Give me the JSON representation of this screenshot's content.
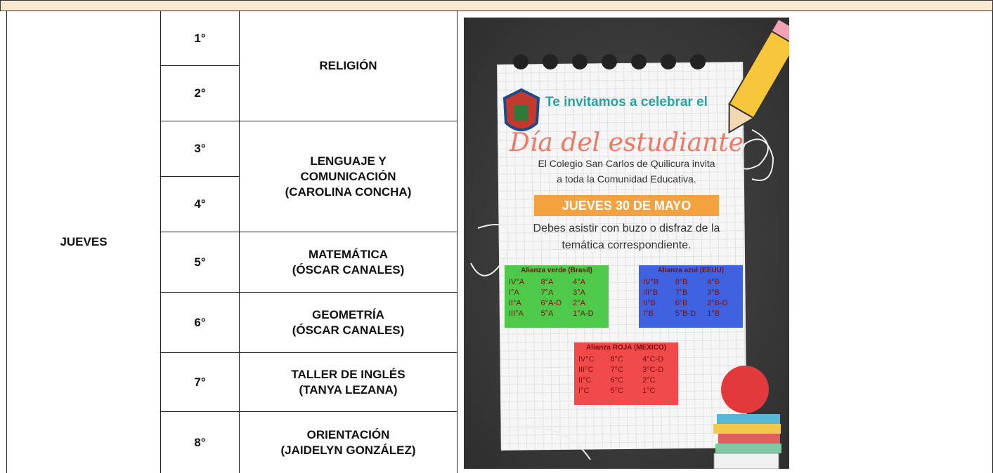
{
  "table": {
    "day": "JUEVES",
    "periods": [
      "1°",
      "2°",
      "3°",
      "4°",
      "5°",
      "6°",
      "7°",
      "8°"
    ],
    "subjects": [
      [
        "RELIGIÓN"
      ],
      null,
      [
        "LENGUAJE Y",
        "COMUNICACIÓN",
        "(CAROLINA CONCHA)"
      ],
      null,
      [
        "MATEMÁTICA",
        "(ÓSCAR CANALES)"
      ],
      [
        "GEOMETRÍA",
        "(ÓSCAR CANALES)"
      ],
      [
        "TALLER DE INGLÉS",
        "(TANYA LEZANA)"
      ],
      [
        "ORIENTACIÓN",
        "(JAIDELYN GONZÁLEZ)"
      ]
    ]
  },
  "poster": {
    "invite": "Te invitamos a celebrar el",
    "title": "Día del estudiante",
    "text": [
      "El Colegio San Carlos de Quilicura invita",
      "a toda la Comunidad Educativa."
    ],
    "date": "JUEVES 30 DE MAYO",
    "instructions": [
      "Debes asistir con buzo o disfraz de la",
      "temática correspondiente."
    ],
    "alliances": [
      {
        "name": "Alianza verde (Brasil)",
        "rows": [
          [
            "IV°A",
            "8°A",
            "4°A"
          ],
          [
            "I°A",
            "7°A",
            "3°A"
          ],
          [
            "II°A",
            "6°A-D",
            "2°A"
          ],
          [
            "III°A",
            "5°A",
            "1°A-D"
          ]
        ]
      },
      {
        "name": "Alianza azul (EEUU)",
        "rows": [
          [
            "IV°B",
            "8°B",
            "4°B"
          ],
          [
            "III°B",
            "7°B",
            "3°B"
          ],
          [
            "II°B",
            "6°B",
            "2°B-D"
          ],
          [
            "I°B",
            "5°B-D",
            "1°B"
          ]
        ]
      },
      {
        "name": "Alianza ROJA (MEXICO)",
        "rows": [
          [
            "IV°C",
            "8°C",
            "4°C-D"
          ],
          [
            "III°C",
            "7°C",
            "3°C-D"
          ],
          [
            "II°C",
            "6°C",
            "2°C"
          ],
          [
            "I°C",
            "5°C",
            "1°C"
          ]
        ]
      }
    ]
  }
}
